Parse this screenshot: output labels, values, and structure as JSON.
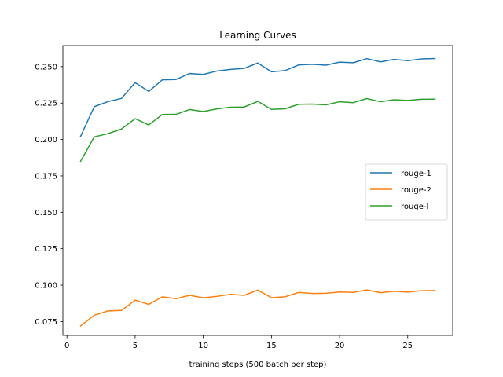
{
  "chart_data": {
    "type": "line",
    "title": "Learning Curves",
    "xlabel": "training steps (500 batch per step)",
    "ylabel": "",
    "xlim": [
      -0.3,
      28.3
    ],
    "ylim": [
      0.0655,
      0.2645
    ],
    "xticks": [
      0,
      5,
      10,
      15,
      20,
      25
    ],
    "yticks": [
      0.075,
      0.1,
      0.125,
      0.15,
      0.175,
      0.2,
      0.225,
      0.25
    ],
    "ytick_labels": [
      "0.075",
      "0.100",
      "0.125",
      "0.150",
      "0.175",
      "0.200",
      "0.225",
      "0.250"
    ],
    "legend_position": "center-right",
    "grid": false,
    "x": [
      1,
      2,
      3,
      4,
      5,
      6,
      7,
      8,
      9,
      10,
      11,
      12,
      13,
      14,
      15,
      16,
      17,
      18,
      19,
      20,
      21,
      22,
      23,
      24,
      25,
      26,
      27
    ],
    "series": [
      {
        "name": "rouge-1",
        "color": "#1f77b4",
        "values": [
          0.2022,
          0.2225,
          0.226,
          0.2282,
          0.239,
          0.233,
          0.241,
          0.2412,
          0.2453,
          0.2447,
          0.247,
          0.2481,
          0.2488,
          0.2525,
          0.2465,
          0.2473,
          0.2512,
          0.2516,
          0.251,
          0.2531,
          0.2527,
          0.2555,
          0.2533,
          0.255,
          0.2541,
          0.2553,
          0.2556
        ]
      },
      {
        "name": "rouge-2",
        "color": "#ff7f0e",
        "values": [
          0.072,
          0.0793,
          0.0823,
          0.0826,
          0.0897,
          0.0868,
          0.092,
          0.0907,
          0.093,
          0.0913,
          0.0923,
          0.0937,
          0.093,
          0.0966,
          0.0914,
          0.092,
          0.095,
          0.0943,
          0.0944,
          0.0953,
          0.095,
          0.0967,
          0.0948,
          0.0958,
          0.0952,
          0.0962,
          0.0963
        ]
      },
      {
        "name": "rouge-l",
        "color": "#2ca02c",
        "values": [
          0.185,
          0.2018,
          0.204,
          0.2072,
          0.2143,
          0.21,
          0.2172,
          0.2173,
          0.2206,
          0.2192,
          0.221,
          0.2222,
          0.2223,
          0.2262,
          0.2207,
          0.2211,
          0.2242,
          0.2243,
          0.2238,
          0.2259,
          0.2253,
          0.2281,
          0.2259,
          0.2273,
          0.2268,
          0.2276,
          0.2277
        ]
      }
    ]
  }
}
